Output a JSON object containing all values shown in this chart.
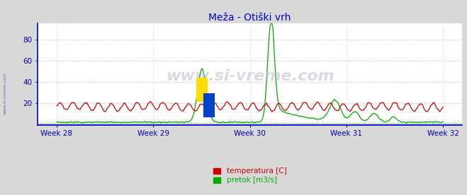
{
  "title": "Meža - Otiški vrh",
  "title_color": "#0000cc",
  "title_fontsize": 10,
  "bg_color": "#d8d8d8",
  "plot_bg_color": "#ffffff",
  "grid_color_h": "#ff9999",
  "grid_color_v": "#aaddaa",
  "xlabel_color": "#0000aa",
  "ylabel_color": "#0000aa",
  "axis_color": "#0000aa",
  "tick_color": "#0000aa",
  "xlabels": [
    "Week 28",
    "Week 29",
    "Week 30",
    "Week 31",
    "Week 32"
  ],
  "ylim": [
    0,
    95
  ],
  "yticks": [
    20,
    40,
    60,
    80
  ],
  "legend_labels": [
    "temperatura [C]",
    "pretok [m3/s]"
  ],
  "legend_colors": [
    "#cc0000",
    "#00aa00"
  ],
  "watermark": "www.si-vreme.com",
  "side_label": "www.si-vreme.com",
  "temp_color": "#cc0000",
  "flow_color": "#00aa00",
  "blue_line_color": "#0000cc",
  "dotted_green_color": "#00aa00"
}
